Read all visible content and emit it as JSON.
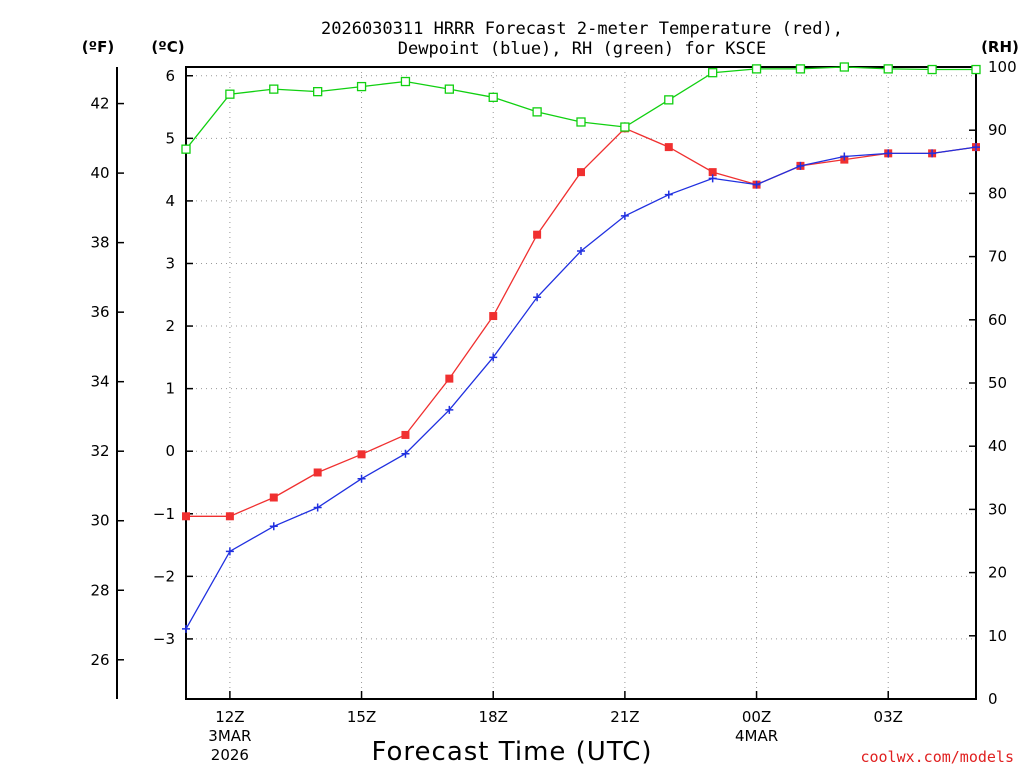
{
  "chart_data": {
    "type": "line",
    "title_line1": "2026030311 HRRR Forecast 2-meter Temperature (red),",
    "title_line2": "Dewpoint (blue), RH (green) for KSCE",
    "left_unit_f": "(ºF)",
    "left_unit_c": "(ºC)",
    "right_unit": "(RH)",
    "xlabel": "Forecast Time (UTC)",
    "credit": "coolwx.com/models",
    "x_hours": [
      11,
      12,
      13,
      14,
      15,
      16,
      17,
      18,
      19,
      20,
      21,
      22,
      23,
      24,
      25,
      26,
      27,
      28,
      29
    ],
    "xlim": [
      11,
      29
    ],
    "x_ticks": [
      {
        "hour": 12,
        "label": "12Z",
        "sub1": "3MAR",
        "sub2": "2026"
      },
      {
        "hour": 15,
        "label": "15Z",
        "sub1": "",
        "sub2": ""
      },
      {
        "hour": 18,
        "label": "18Z",
        "sub1": "",
        "sub2": ""
      },
      {
        "hour": 21,
        "label": "21Z",
        "sub1": "",
        "sub2": ""
      },
      {
        "hour": 24,
        "label": "00Z",
        "sub1": "4MAR",
        "sub2": ""
      },
      {
        "hour": 27,
        "label": "03Z",
        "sub1": "",
        "sub2": ""
      }
    ],
    "y_celsius": {
      "lim": [
        -3.96,
        6.14
      ],
      "ticks": [
        -3,
        -2,
        -1,
        0,
        1,
        2,
        3,
        4,
        5,
        6
      ],
      "tick_labels": [
        "−3",
        "−2",
        "−1",
        "0",
        "1",
        "2",
        "3",
        "4",
        "5",
        "6"
      ]
    },
    "y_fahrenheit": {
      "ticks": [
        26,
        28,
        30,
        32,
        34,
        36,
        38,
        40,
        42
      ],
      "tick_labels": [
        "26",
        "28",
        "30",
        "32",
        "34",
        "36",
        "38",
        "40",
        "42"
      ]
    },
    "y_rh": {
      "lim": [
        0,
        100
      ],
      "ticks": [
        0,
        10,
        20,
        30,
        40,
        50,
        60,
        70,
        80,
        90,
        100
      ],
      "tick_labels": [
        "0",
        "10",
        "20",
        "30",
        "40",
        "50",
        "60",
        "70",
        "80",
        "90",
        "100"
      ]
    },
    "series": [
      {
        "name": "2-meter Temperature",
        "axis": "celsius",
        "color": "#f03030",
        "marker": "filled-square",
        "values": [
          -1.04,
          -1.04,
          -0.74,
          -0.34,
          -0.05,
          0.26,
          1.16,
          2.16,
          3.46,
          4.46,
          5.16,
          4.86,
          4.46,
          4.26,
          4.56,
          4.66,
          4.76,
          4.76,
          4.86
        ]
      },
      {
        "name": "Dewpoint",
        "axis": "celsius",
        "color": "#2030e0",
        "marker": "plus",
        "values": [
          -2.84,
          -1.6,
          -1.2,
          -0.9,
          -0.44,
          -0.04,
          0.66,
          1.5,
          2.46,
          3.2,
          3.76,
          4.1,
          4.36,
          4.26,
          4.56,
          4.71,
          4.76,
          4.76,
          4.86
        ]
      },
      {
        "name": "RH",
        "axis": "rh",
        "color": "#10d010",
        "marker": "open-square",
        "values": [
          87,
          95.7,
          96.5,
          96.1,
          96.9,
          97.7,
          96.5,
          95.2,
          92.9,
          91.3,
          90.5,
          94.8,
          99.1,
          99.7,
          99.7,
          100,
          99.7,
          99.6,
          99.6
        ]
      }
    ]
  }
}
